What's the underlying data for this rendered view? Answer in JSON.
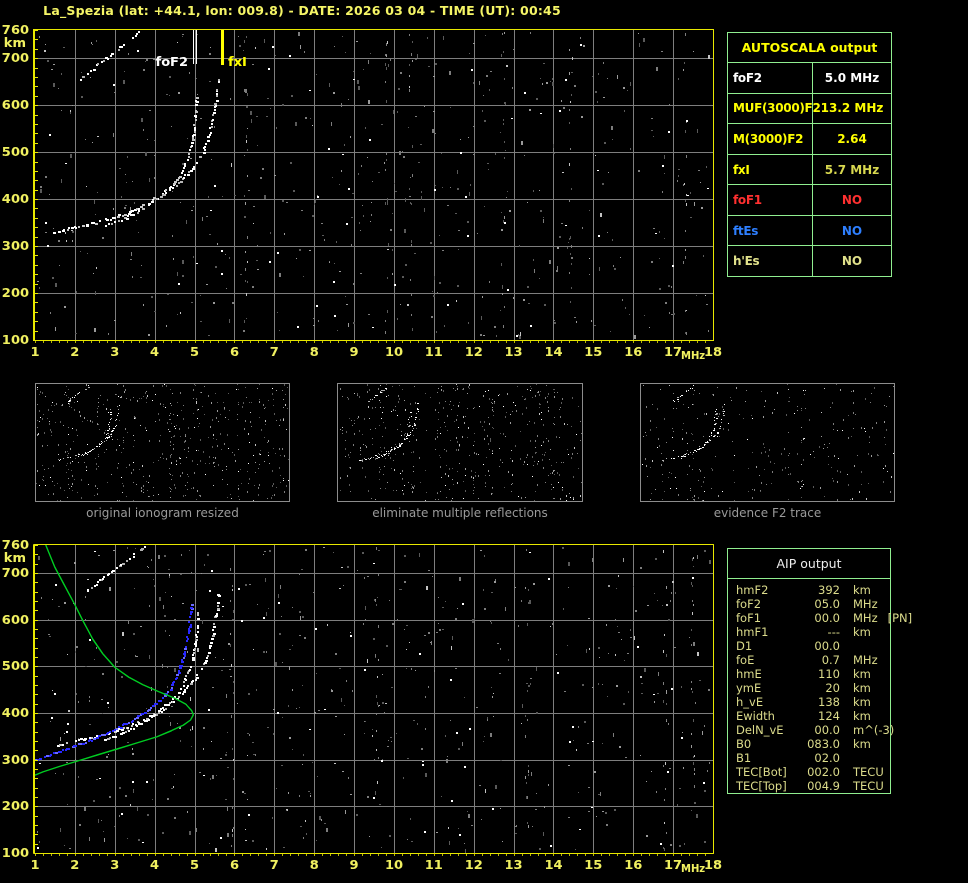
{
  "header": {
    "title": "La_Spezia (lat: +44.1, lon: 009.8) - DATE: 2026 03 04 - TIME (UT): 00:45",
    "color": "#F5F566"
  },
  "palette": {
    "background": "#000000",
    "plot_border": "#E8E800",
    "grid": "#7E7E7E",
    "axis_label": "#F0F060",
    "table_border": "#90EE90",
    "caption": "#9A9A9A"
  },
  "autoscala_table": {
    "title": "AUTOSCALA output",
    "title_color": "#FFFF00",
    "rows": [
      {
        "label": "foF2",
        "value": "5.0 MHz",
        "color": "#FFFFFF",
        "value_color": "#FFFFFF"
      },
      {
        "label": "MUF(3000)F2",
        "value": "13.2 MHz",
        "color": "#FFFF00",
        "value_color": "#FFFF00"
      },
      {
        "label": "M(3000)F2",
        "value": "2.64",
        "color": "#FFFF00",
        "value_color": "#FFFF00"
      },
      {
        "label": "fxI",
        "value": "5.7 MHz",
        "color": "#FFFF00",
        "value_color": "#D8D84F"
      },
      {
        "label": "foF1",
        "value": "NO",
        "color": "#FF3030",
        "value_color": "#FF3030"
      },
      {
        "label": "ftEs",
        "value": "NO",
        "color": "#2E7FFF",
        "value_color": "#2E7FFF"
      },
      {
        "label": "h'Es",
        "value": "NO",
        "color": "#E0E08A",
        "value_color": "#E0E08A"
      }
    ]
  },
  "aip_table": {
    "title": "AIP output",
    "text_color": "#DCDC8C",
    "rows": [
      {
        "name": "hmF2",
        "value": "392",
        "unit": "km",
        "note": ""
      },
      {
        "name": "foF2",
        "value": "05.0",
        "unit": "MHz",
        "note": ""
      },
      {
        "name": "foF1",
        "value": "00.0",
        "unit": "MHz",
        "note": "[PN]"
      },
      {
        "name": "hmF1",
        "value": "---",
        "unit": "km",
        "note": ""
      },
      {
        "name": "D1",
        "value": "00.0",
        "unit": "",
        "note": ""
      },
      {
        "name": "foE",
        "value": "0.7",
        "unit": "MHz",
        "note": ""
      },
      {
        "name": "hmE",
        "value": "110",
        "unit": "km",
        "note": ""
      },
      {
        "name": "ymE",
        "value": "20",
        "unit": "km",
        "note": ""
      },
      {
        "name": "h_vE",
        "value": "138",
        "unit": "km",
        "note": ""
      },
      {
        "name": "Ewidth",
        "value": "124",
        "unit": "km",
        "note": ""
      },
      {
        "name": "DelN_vE",
        "value": "00.0",
        "unit": "m^(-3)",
        "note": ""
      },
      {
        "name": "B0",
        "value": "083.0",
        "unit": "km",
        "note": ""
      },
      {
        "name": "B1",
        "value": "02.0",
        "unit": "",
        "note": ""
      },
      {
        "name": "TEC[Bot]",
        "value": "002.0",
        "unit": "TECU",
        "note": ""
      },
      {
        "name": "TEC[Top]",
        "value": "004.9",
        "unit": "TECU",
        "note": ""
      }
    ]
  },
  "thumbnails": [
    {
      "caption": "original ionogram resized",
      "seed": 11,
      "gray": 430,
      "white": 46,
      "stripes": 6
    },
    {
      "caption": "eliminate multiple reflections",
      "seed": 22,
      "gray": 390,
      "white": 40,
      "stripes": 5
    },
    {
      "caption": "evidence F2 trace",
      "seed": 33,
      "gray": 230,
      "white": 26,
      "stripes": 3
    }
  ],
  "chart_data": [
    {
      "type": "scatter",
      "name": "ionogram-scaled",
      "xlabel": "MHz",
      "ylabel": "km",
      "xlim": [
        1,
        18
      ],
      "ylim": [
        100,
        760
      ],
      "xticks": [
        1,
        2,
        3,
        4,
        5,
        6,
        7,
        8,
        9,
        10,
        11,
        12,
        13,
        14,
        15,
        16,
        17,
        18
      ],
      "yticks": [
        760,
        700,
        600,
        500,
        400,
        300,
        200,
        100
      ],
      "grid": true,
      "annotations": [
        {
          "label": "foF2",
          "x": 5.0,
          "color": "#FFFFFF",
          "side": "left",
          "line": "double"
        },
        {
          "label": "fxI",
          "x": 5.7,
          "color": "#FFFF00",
          "side": "right",
          "line": "thick"
        }
      ],
      "noise": {
        "seed": 7,
        "gray": 540,
        "white": 58,
        "stripes": [
          6.3,
          9.85,
          10.45,
          12.75,
          14.45,
          17.3
        ]
      },
      "series": [
        {
          "id": "o-mode-trace",
          "color": "#FFFFFF",
          "alt": "#C8C8C8",
          "style": "dots",
          "density": 0.84,
          "size": 2,
          "points": [
            [
              1.5,
              330
            ],
            [
              1.8,
              336
            ],
            [
              2.2,
              344
            ],
            [
              2.6,
              352
            ],
            [
              3.0,
              361
            ],
            [
              3.4,
              373
            ],
            [
              3.8,
              390
            ],
            [
              4.1,
              406
            ],
            [
              4.4,
              426
            ],
            [
              4.65,
              452
            ],
            [
              4.82,
              485
            ],
            [
              4.93,
              520
            ],
            [
              5.0,
              558
            ],
            [
              5.04,
              595
            ],
            [
              5.06,
              622
            ]
          ]
        },
        {
          "id": "x-mode-trace",
          "color": "#FFFFFF",
          "alt": "#B8B8B8",
          "style": "dots",
          "density": 0.7,
          "size": 2,
          "points": [
            [
              2.7,
              342
            ],
            [
              3.1,
              355
            ],
            [
              3.5,
              370
            ],
            [
              3.9,
              390
            ],
            [
              4.3,
              414
            ],
            [
              4.7,
              443
            ],
            [
              5.0,
              472
            ],
            [
              5.2,
              500
            ],
            [
              5.35,
              532
            ],
            [
              5.45,
              565
            ],
            [
              5.52,
              600
            ],
            [
              5.57,
              635
            ],
            [
              5.6,
              662
            ]
          ]
        },
        {
          "id": "second-hop-trace",
          "color": "#FFFFFF",
          "alt": "#AFAFAF",
          "style": "dots",
          "density": 0.66,
          "size": 2,
          "points": [
            [
              2.15,
              655
            ],
            [
              2.5,
              682
            ],
            [
              2.9,
              708
            ],
            [
              3.3,
              734
            ],
            [
              3.65,
              758
            ]
          ]
        }
      ]
    },
    {
      "type": "scatter",
      "name": "ionogram-inversion",
      "xlabel": "MHz",
      "ylabel": "km",
      "xlim": [
        1,
        18
      ],
      "ylim": [
        100,
        760
      ],
      "xticks": [
        1,
        2,
        3,
        4,
        5,
        6,
        7,
        8,
        9,
        10,
        11,
        12,
        13,
        14,
        15,
        16,
        17,
        18
      ],
      "yticks": [
        760,
        700,
        600,
        500,
        400,
        300,
        200,
        100
      ],
      "grid": true,
      "annotations": [],
      "noise": {
        "seed": 19,
        "gray": 580,
        "white": 66,
        "stripes": [
          5.95,
          9.6,
          13.35,
          16.8,
          17.5
        ]
      },
      "series": [
        {
          "id": "o-mode-trace",
          "color": "#FFFFFF",
          "alt": "#C8C8C8",
          "style": "dots",
          "density": 0.8,
          "size": 2,
          "points": [
            [
              1.5,
              330
            ],
            [
              1.8,
              336
            ],
            [
              2.2,
              344
            ],
            [
              2.6,
              352
            ],
            [
              3.0,
              361
            ],
            [
              3.4,
              373
            ],
            [
              3.8,
              390
            ],
            [
              4.1,
              406
            ],
            [
              4.4,
              426
            ],
            [
              4.65,
              452
            ],
            [
              4.82,
              485
            ],
            [
              4.95,
              520
            ],
            [
              5.03,
              558
            ],
            [
              5.08,
              595
            ],
            [
              5.1,
              620
            ]
          ]
        },
        {
          "id": "x-mode-trace",
          "color": "#FFFFFF",
          "alt": "#B8B8B8",
          "style": "dots",
          "density": 0.72,
          "size": 2,
          "points": [
            [
              2.7,
              342
            ],
            [
              3.1,
              355
            ],
            [
              3.5,
              370
            ],
            [
              3.9,
              390
            ],
            [
              4.3,
              414
            ],
            [
              4.7,
              443
            ],
            [
              5.0,
              472
            ],
            [
              5.2,
              500
            ],
            [
              5.35,
              532
            ],
            [
              5.45,
              565
            ],
            [
              5.52,
              600
            ],
            [
              5.57,
              635
            ],
            [
              5.6,
              660
            ]
          ]
        },
        {
          "id": "second-hop-trace",
          "color": "#FFFFFF",
          "alt": "#AFAFAF",
          "style": "dots",
          "density": 0.62,
          "size": 2,
          "points": [
            [
              2.3,
              662
            ],
            [
              2.7,
              690
            ],
            [
              3.1,
              715
            ],
            [
              3.5,
              740
            ],
            [
              3.85,
              760
            ]
          ]
        },
        {
          "id": "restored-f2-trace",
          "color": "#2828FF",
          "alt": "#6A6AFF",
          "style": "dots",
          "density": 0.92,
          "size": 2,
          "points": [
            [
              1.02,
              299
            ],
            [
              1.4,
              311
            ],
            [
              1.8,
              323
            ],
            [
              2.2,
              336
            ],
            [
              2.6,
              350
            ],
            [
              3.0,
              365
            ],
            [
              3.4,
              383
            ],
            [
              3.75,
              402
            ],
            [
              4.05,
              422
            ],
            [
              4.3,
              444
            ],
            [
              4.5,
              468
            ],
            [
              4.63,
              495
            ],
            [
              4.73,
              524
            ],
            [
              4.8,
              553
            ],
            [
              4.86,
              582
            ],
            [
              4.9,
              612
            ],
            [
              4.93,
              638
            ]
          ]
        },
        {
          "id": "electron-density-profile",
          "color": "#00CC22",
          "style": "line",
          "width": 1.4,
          "points": [
            [
              1.27,
              760
            ],
            [
              1.5,
              712
            ],
            [
              1.75,
              672
            ],
            [
              2.0,
              632
            ],
            [
              2.2,
              598
            ],
            [
              2.45,
              558
            ],
            [
              2.7,
              527
            ],
            [
              3.0,
              498
            ],
            [
              3.35,
              477
            ],
            [
              3.7,
              461
            ],
            [
              4.1,
              446
            ],
            [
              4.5,
              432
            ],
            [
              4.78,
              419
            ],
            [
              4.93,
              405
            ],
            [
              4.97,
              396
            ],
            [
              4.9,
              385
            ],
            [
              4.72,
              374
            ],
            [
              4.42,
              362
            ],
            [
              4.05,
              349
            ],
            [
              3.6,
              337
            ],
            [
              3.1,
              324
            ],
            [
              2.6,
              311
            ],
            [
              2.1,
              298
            ],
            [
              1.6,
              285
            ],
            [
              1.2,
              274
            ],
            [
              1.0,
              267
            ]
          ]
        }
      ]
    }
  ]
}
